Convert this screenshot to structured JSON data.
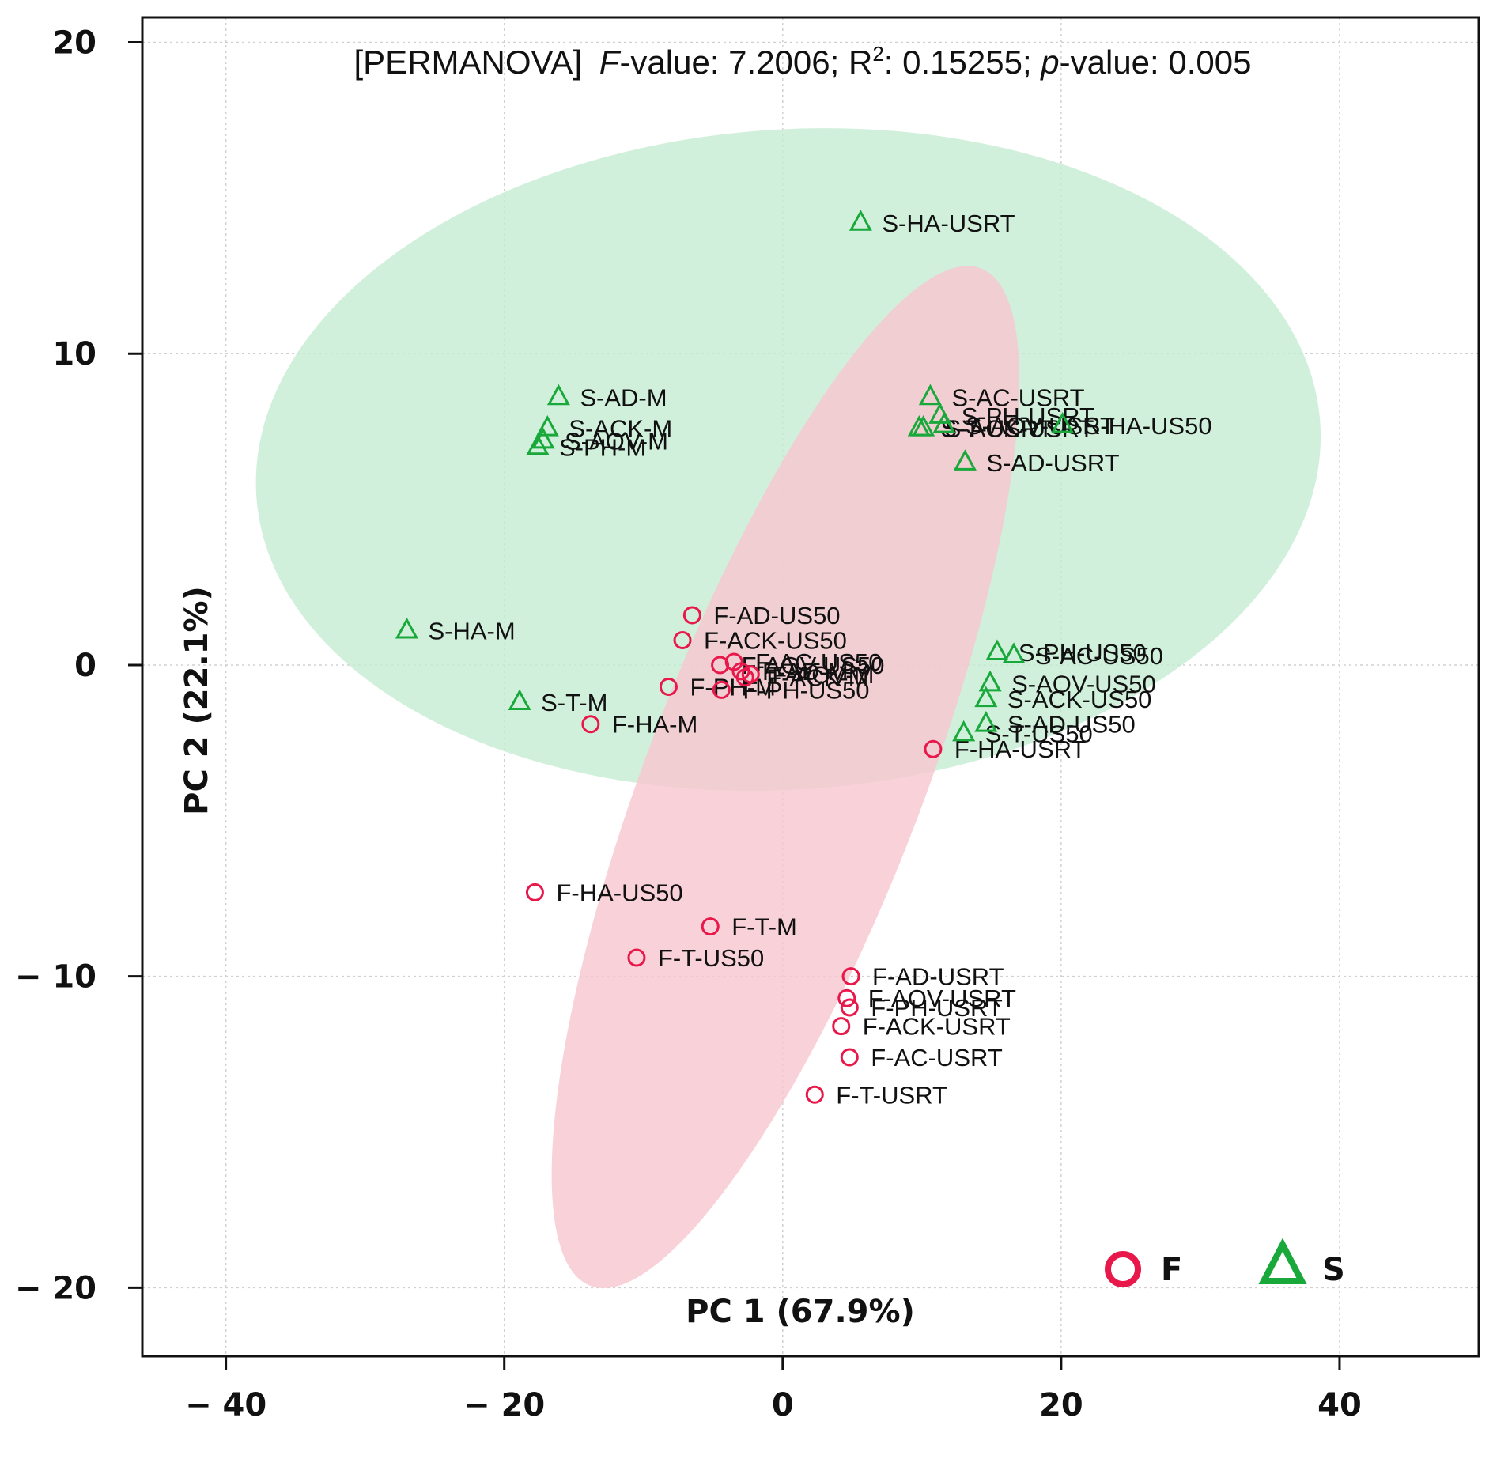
{
  "chart_data": {
    "type": "scatter",
    "title": "",
    "annotation": {
      "prefix": "[PERMANOVA]",
      "f_italic": "F",
      "f_rest": "-value: 7.2006; R",
      "r_sup": "2",
      "r_rest": ": 0.15255;",
      "p_italic": "p",
      "p_rest": "-value: 0.005"
    },
    "xlabel": "PC 1 (67.9%)",
    "ylabel": "PC 2 (22.1%)",
    "xlim": [
      -46,
      50
    ],
    "ylim": [
      -22.2,
      20.8
    ],
    "xticks": [
      -40,
      -20,
      0,
      20,
      40
    ],
    "xtick_labels": [
      "− 40",
      "− 20",
      "0",
      "20",
      "40"
    ],
    "yticks": [
      20,
      10,
      0,
      -10,
      -20
    ],
    "ytick_labels": [
      "20",
      "10",
      "0",
      "− 10",
      "− 20"
    ],
    "grid": true,
    "legend_position": "bottom-right",
    "ellipses": [
      {
        "group": "S",
        "center": [
          0.4,
          6.6
        ],
        "semi_axes": [
          38.3,
          10.6
        ],
        "angle_deg": -4,
        "color": "#c5ecd3"
      },
      {
        "group": "F",
        "center": [
          0.2,
          -3.6
        ],
        "semi_axes": [
          9.9,
          17.5
        ],
        "angle_deg": 21,
        "color": "#f8c5d0"
      }
    ],
    "series": [
      {
        "name": "F",
        "marker": "circle",
        "color": "#e8194a",
        "points": [
          {
            "label": "F-AD-US50",
            "x": -6.5,
            "y": 1.6
          },
          {
            "label": "F-ACK-US50",
            "x": -7.2,
            "y": 0.8
          },
          {
            "label": "F-AOV-US50",
            "x": -4.5,
            "y": 0.0
          },
          {
            "label": "F-AC-US50",
            "x": -3.5,
            "y": 0.1
          },
          {
            "label": "F-AD-M",
            "x": -3.0,
            "y": -0.2
          },
          {
            "label": "F-ACK-M",
            "x": -2.7,
            "y": -0.4
          },
          {
            "label": "F-AOV-M",
            "x": -2.3,
            "y": -0.3
          },
          {
            "label": "F-PH-US50",
            "x": -4.4,
            "y": -0.8
          },
          {
            "label": "F-PH-M",
            "x": -8.2,
            "y": -0.7
          },
          {
            "label": "F-HA-M",
            "x": -13.8,
            "y": -1.9
          },
          {
            "label": "F-HA-USRT",
            "x": 10.8,
            "y": -2.7
          },
          {
            "label": "F-HA-US50",
            "x": -17.8,
            "y": -7.3
          },
          {
            "label": "F-T-M",
            "x": -5.2,
            "y": -8.4
          },
          {
            "label": "F-T-US50",
            "x": -10.5,
            "y": -9.4
          },
          {
            "label": "F-AD-USRT",
            "x": 4.9,
            "y": -10.0
          },
          {
            "label": "F-AOV-USRT",
            "x": 4.6,
            "y": -10.7
          },
          {
            "label": "F-PH-USRT",
            "x": 4.8,
            "y": -11.0
          },
          {
            "label": "F-ACK-USRT",
            "x": 4.2,
            "y": -11.6
          },
          {
            "label": "F-AC-USRT",
            "x": 4.8,
            "y": -12.6
          },
          {
            "label": "F-T-USRT",
            "x": 2.3,
            "y": -13.8
          }
        ]
      },
      {
        "name": "S",
        "marker": "triangle",
        "color": "#19a83a",
        "points": [
          {
            "label": "S-HA-USRT",
            "x": 5.6,
            "y": 14.2
          },
          {
            "label": "S-AD-M",
            "x": -16.1,
            "y": 8.6
          },
          {
            "label": "S-ACK-M",
            "x": -16.9,
            "y": 7.6
          },
          {
            "label": "S-AOV-M",
            "x": -17.2,
            "y": 7.2
          },
          {
            "label": "S-PH-M",
            "x": -17.6,
            "y": 7.0
          },
          {
            "label": "S-AC-USRT",
            "x": 10.6,
            "y": 8.6
          },
          {
            "label": "S-PH-USRT",
            "x": 11.3,
            "y": 8.0
          },
          {
            "label": "S-AOV-USRT",
            "x": 11.6,
            "y": 7.7
          },
          {
            "label": "S-HA-US50",
            "x": 20.1,
            "y": 7.7
          },
          {
            "label": "S-ACK-USRT",
            "x": 10.1,
            "y": 7.6
          },
          {
            "label": "S-T-USRT",
            "x": 9.8,
            "y": 7.6
          },
          {
            "label": "S-AD-USRT",
            "x": 13.1,
            "y": 6.5
          },
          {
            "label": "S-HA-M",
            "x": -27.0,
            "y": 1.1
          },
          {
            "label": "S-PH-US50",
            "x": 15.4,
            "y": 0.4
          },
          {
            "label": "S-AC-US50",
            "x": 16.6,
            "y": 0.3
          },
          {
            "label": "S-AOV-US50",
            "x": 14.9,
            "y": -0.6
          },
          {
            "label": "S-ACK-US50",
            "x": 14.6,
            "y": -1.1
          },
          {
            "label": "S-T-M",
            "x": -18.9,
            "y": -1.2
          },
          {
            "label": "S-AD-US50",
            "x": 14.6,
            "y": -1.9
          },
          {
            "label": "S-T-US50",
            "x": 13.0,
            "y": -2.2
          }
        ]
      }
    ],
    "legend": [
      {
        "label": "F",
        "marker": "circle",
        "color": "#e8194a"
      },
      {
        "label": "S",
        "marker": "triangle",
        "color": "#19a83a"
      }
    ]
  }
}
